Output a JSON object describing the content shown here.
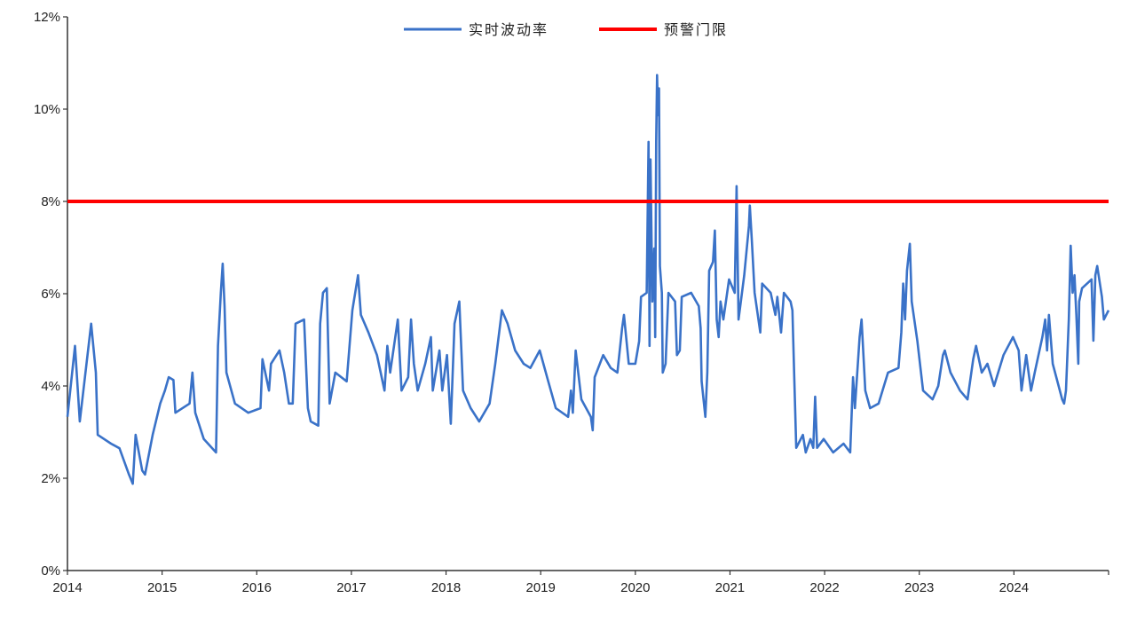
{
  "chart_data": {
    "type": "line",
    "title": "",
    "xlabel": "",
    "ylabel": "",
    "xlim": [
      2014,
      2025
    ],
    "ylim": [
      0,
      12
    ],
    "x_ticks": [
      "2014",
      "2015",
      "2016",
      "2017",
      "2018",
      "2019",
      "2020",
      "2021",
      "2022",
      "2023",
      "2024"
    ],
    "y_ticks": [
      "0%",
      "2%",
      "4%",
      "6%",
      "8%",
      "10%",
      "12%"
    ],
    "grid": false,
    "legend_position": "top-center",
    "series": [
      {
        "name": "实时波动率",
        "color": "#3a72c8",
        "points": [
          [
            2014.0,
            3.33
          ],
          [
            2014.08,
            4.87
          ],
          [
            2014.13,
            3.23
          ],
          [
            2014.19,
            4.29
          ],
          [
            2014.25,
            5.35
          ],
          [
            2014.3,
            4.29
          ],
          [
            2014.32,
            2.94
          ],
          [
            2014.46,
            2.75
          ],
          [
            2014.55,
            2.65
          ],
          [
            2014.65,
            2.08
          ],
          [
            2014.69,
            1.88
          ],
          [
            2014.72,
            2.94
          ],
          [
            2014.79,
            2.17
          ],
          [
            2014.82,
            2.08
          ],
          [
            2014.9,
            2.94
          ],
          [
            2014.98,
            3.62
          ],
          [
            2015.03,
            3.9
          ],
          [
            2015.07,
            4.19
          ],
          [
            2015.12,
            4.13
          ],
          [
            2015.14,
            3.42
          ],
          [
            2015.29,
            3.62
          ],
          [
            2015.32,
            4.29
          ],
          [
            2015.35,
            3.42
          ],
          [
            2015.44,
            2.85
          ],
          [
            2015.57,
            2.56
          ],
          [
            2015.59,
            4.87
          ],
          [
            2015.62,
            6.02
          ],
          [
            2015.64,
            6.65
          ],
          [
            2015.66,
            5.73
          ],
          [
            2015.68,
            4.29
          ],
          [
            2015.77,
            3.62
          ],
          [
            2015.91,
            3.42
          ],
          [
            2016.04,
            3.52
          ],
          [
            2016.06,
            4.58
          ],
          [
            2016.13,
            3.9
          ],
          [
            2016.15,
            4.48
          ],
          [
            2016.24,
            4.77
          ],
          [
            2016.29,
            4.29
          ],
          [
            2016.34,
            3.62
          ],
          [
            2016.38,
            3.62
          ],
          [
            2016.41,
            5.35
          ],
          [
            2016.5,
            5.44
          ],
          [
            2016.54,
            3.52
          ],
          [
            2016.57,
            3.23
          ],
          [
            2016.65,
            3.14
          ],
          [
            2016.67,
            5.35
          ],
          [
            2016.7,
            6.02
          ],
          [
            2016.74,
            6.12
          ],
          [
            2016.77,
            3.62
          ],
          [
            2016.83,
            4.29
          ],
          [
            2016.95,
            4.1
          ],
          [
            2017.01,
            5.64
          ],
          [
            2017.07,
            6.4
          ],
          [
            2017.1,
            5.54
          ],
          [
            2017.18,
            5.16
          ],
          [
            2017.27,
            4.67
          ],
          [
            2017.35,
            3.9
          ],
          [
            2017.38,
            4.87
          ],
          [
            2017.41,
            4.29
          ],
          [
            2017.49,
            5.44
          ],
          [
            2017.53,
            3.9
          ],
          [
            2017.6,
            4.19
          ],
          [
            2017.63,
            5.44
          ],
          [
            2017.66,
            4.48
          ],
          [
            2017.7,
            3.9
          ],
          [
            2017.78,
            4.48
          ],
          [
            2017.84,
            5.06
          ],
          [
            2017.86,
            3.9
          ],
          [
            2017.93,
            4.77
          ],
          [
            2017.96,
            3.9
          ],
          [
            2018.01,
            4.67
          ],
          [
            2018.05,
            3.18
          ],
          [
            2018.09,
            5.35
          ],
          [
            2018.14,
            5.83
          ],
          [
            2018.18,
            3.9
          ],
          [
            2018.26,
            3.52
          ],
          [
            2018.35,
            3.23
          ],
          [
            2018.46,
            3.62
          ],
          [
            2018.52,
            4.48
          ],
          [
            2018.59,
            5.64
          ],
          [
            2018.65,
            5.35
          ],
          [
            2018.73,
            4.77
          ],
          [
            2018.82,
            4.48
          ],
          [
            2018.89,
            4.39
          ],
          [
            2018.99,
            4.77
          ],
          [
            2019.08,
            4.1
          ],
          [
            2019.16,
            3.52
          ],
          [
            2019.29,
            3.33
          ],
          [
            2019.32,
            3.9
          ],
          [
            2019.34,
            3.42
          ],
          [
            2019.37,
            4.77
          ],
          [
            2019.43,
            3.71
          ],
          [
            2019.53,
            3.33
          ],
          [
            2019.55,
            3.04
          ],
          [
            2019.57,
            4.19
          ],
          [
            2019.66,
            4.67
          ],
          [
            2019.74,
            4.39
          ],
          [
            2019.81,
            4.29
          ],
          [
            2019.86,
            5.25
          ],
          [
            2019.88,
            5.54
          ],
          [
            2019.93,
            4.48
          ],
          [
            2020.0,
            4.48
          ],
          [
            2020.04,
            4.97
          ],
          [
            2020.06,
            5.93
          ],
          [
            2020.12,
            6.02
          ],
          [
            2020.14,
            9.29
          ],
          [
            2020.15,
            4.87
          ],
          [
            2020.16,
            8.91
          ],
          [
            2020.18,
            5.83
          ],
          [
            2020.2,
            6.98
          ],
          [
            2020.21,
            5.06
          ],
          [
            2020.22,
            9.29
          ],
          [
            2020.23,
            10.74
          ],
          [
            2020.24,
            9.87
          ],
          [
            2020.25,
            10.45
          ],
          [
            2020.26,
            6.6
          ],
          [
            2020.28,
            6.02
          ],
          [
            2020.29,
            4.29
          ],
          [
            2020.32,
            4.48
          ],
          [
            2020.35,
            6.02
          ],
          [
            2020.42,
            5.83
          ],
          [
            2020.44,
            4.67
          ],
          [
            2020.47,
            4.77
          ],
          [
            2020.49,
            5.93
          ],
          [
            2020.59,
            6.02
          ],
          [
            2020.67,
            5.73
          ],
          [
            2020.69,
            5.25
          ],
          [
            2020.7,
            4.1
          ],
          [
            2020.74,
            3.33
          ],
          [
            2020.76,
            4.29
          ],
          [
            2020.78,
            6.5
          ],
          [
            2020.82,
            6.69
          ],
          [
            2020.84,
            7.37
          ],
          [
            2020.86,
            5.44
          ],
          [
            2020.88,
            5.06
          ],
          [
            2020.9,
            5.83
          ],
          [
            2020.93,
            5.44
          ],
          [
            2020.99,
            6.31
          ],
          [
            2021.05,
            6.02
          ],
          [
            2021.07,
            8.33
          ],
          [
            2021.09,
            5.44
          ],
          [
            2021.15,
            6.4
          ],
          [
            2021.2,
            7.47
          ],
          [
            2021.21,
            7.91
          ],
          [
            2021.23,
            7.18
          ],
          [
            2021.26,
            6.02
          ],
          [
            2021.32,
            5.16
          ],
          [
            2021.34,
            6.22
          ],
          [
            2021.43,
            6.02
          ],
          [
            2021.48,
            5.54
          ],
          [
            2021.5,
            5.93
          ],
          [
            2021.54,
            5.16
          ],
          [
            2021.57,
            6.02
          ],
          [
            2021.64,
            5.83
          ],
          [
            2021.66,
            5.64
          ],
          [
            2021.68,
            4.1
          ],
          [
            2021.7,
            2.66
          ],
          [
            2021.77,
            2.94
          ],
          [
            2021.8,
            2.56
          ],
          [
            2021.85,
            2.85
          ],
          [
            2021.88,
            2.66
          ],
          [
            2021.9,
            3.77
          ],
          [
            2021.92,
            2.66
          ],
          [
            2021.99,
            2.85
          ],
          [
            2022.09,
            2.56
          ],
          [
            2022.2,
            2.75
          ],
          [
            2022.27,
            2.56
          ],
          [
            2022.3,
            4.19
          ],
          [
            2022.32,
            3.52
          ],
          [
            2022.37,
            5.06
          ],
          [
            2022.39,
            5.44
          ],
          [
            2022.43,
            3.9
          ],
          [
            2022.48,
            3.52
          ],
          [
            2022.57,
            3.62
          ],
          [
            2022.67,
            4.29
          ],
          [
            2022.78,
            4.39
          ],
          [
            2022.81,
            5.16
          ],
          [
            2022.83,
            6.22
          ],
          [
            2022.85,
            5.44
          ],
          [
            2022.87,
            6.5
          ],
          [
            2022.9,
            7.08
          ],
          [
            2022.92,
            5.83
          ],
          [
            2022.98,
            4.97
          ],
          [
            2023.04,
            3.9
          ],
          [
            2023.14,
            3.71
          ],
          [
            2023.2,
            4.0
          ],
          [
            2023.25,
            4.67
          ],
          [
            2023.27,
            4.77
          ],
          [
            2023.33,
            4.29
          ],
          [
            2023.43,
            3.9
          ],
          [
            2023.51,
            3.71
          ],
          [
            2023.57,
            4.58
          ],
          [
            2023.6,
            4.87
          ],
          [
            2023.66,
            4.29
          ],
          [
            2023.72,
            4.48
          ],
          [
            2023.79,
            4.0
          ],
          [
            2023.89,
            4.67
          ],
          [
            2023.99,
            5.06
          ],
          [
            2024.05,
            4.77
          ],
          [
            2024.08,
            3.9
          ],
          [
            2024.13,
            4.67
          ],
          [
            2024.18,
            3.9
          ],
          [
            2024.22,
            4.29
          ],
          [
            2024.3,
            5.06
          ],
          [
            2024.33,
            5.44
          ],
          [
            2024.35,
            4.77
          ],
          [
            2024.37,
            5.54
          ],
          [
            2024.41,
            4.48
          ],
          [
            2024.51,
            3.71
          ],
          [
            2024.53,
            3.62
          ],
          [
            2024.55,
            3.9
          ],
          [
            2024.58,
            5.44
          ],
          [
            2024.6,
            7.04
          ],
          [
            2024.62,
            6.02
          ],
          [
            2024.64,
            6.4
          ],
          [
            2024.66,
            5.54
          ],
          [
            2024.68,
            4.48
          ],
          [
            2024.69,
            5.83
          ],
          [
            2024.72,
            6.12
          ],
          [
            2024.82,
            6.31
          ],
          [
            2024.84,
            4.98
          ],
          [
            2024.86,
            6.4
          ],
          [
            2024.88,
            6.6
          ],
          [
            2024.93,
            5.93
          ],
          [
            2024.95,
            5.44
          ],
          [
            2025.0,
            5.64
          ]
        ]
      },
      {
        "name": "预警门限",
        "color": "#ff0000",
        "value": 8
      }
    ]
  }
}
